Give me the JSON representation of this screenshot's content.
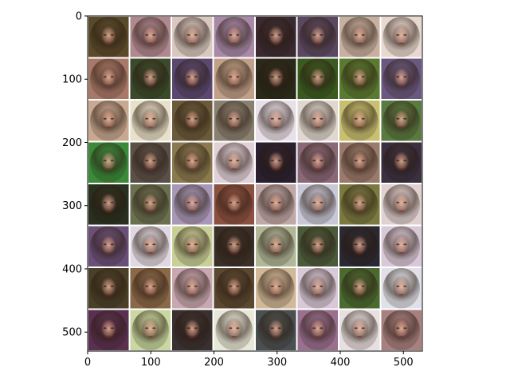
{
  "figure": {
    "xlim": [
      0,
      530
    ],
    "ylim": [
      0,
      530
    ],
    "y_inverted": true,
    "grid": {
      "rows": 8,
      "cols": 8,
      "gap_color": "#ffffff"
    }
  },
  "x_ticks": [
    {
      "value": 0,
      "label": "0"
    },
    {
      "value": 100,
      "label": "100"
    },
    {
      "value": 200,
      "label": "200"
    },
    {
      "value": 300,
      "label": "300"
    },
    {
      "value": 400,
      "label": "400"
    },
    {
      "value": 500,
      "label": "500"
    }
  ],
  "y_ticks": [
    {
      "value": 0,
      "label": "0"
    },
    {
      "value": 100,
      "label": "100"
    },
    {
      "value": 200,
      "label": "200"
    },
    {
      "value": 300,
      "label": "300"
    },
    {
      "value": 400,
      "label": "400"
    },
    {
      "value": 500,
      "label": "500"
    }
  ],
  "tiles": [
    [
      "#5a4a2a",
      "#b08890",
      "#d8c8c0",
      "#a88aa8",
      "#3a2a30",
      "#5a4860",
      "#c8b0a0",
      "#e8d8d0"
    ],
    [
      "#a87868",
      "#3a4a2a",
      "#5a4870",
      "#c0a088",
      "#2a2a1a",
      "#3a5a20",
      "#5a7a30",
      "#6a5880"
    ],
    [
      "#c8a890",
      "#e8e0c8",
      "#6a5a3a",
      "#8a8070",
      "#e8e0e8",
      "#e0d8d0",
      "#c8c070",
      "#5a7a40"
    ],
    [
      "#3a8a3a",
      "#5a5048",
      "#8a7a50",
      "#e0d0d8",
      "#2a2030",
      "#8a6878",
      "#9a7a6a",
      "#3a3040"
    ],
    [
      "#2a3020",
      "#6a7050",
      "#a898b8",
      "#8a5040",
      "#c0a8a8",
      "#c8c8d8",
      "#7a7a40",
      "#e0d0d0"
    ],
    [
      "#6a5078",
      "#e0d8e0",
      "#c8d098",
      "#3a3028",
      "#b0b898",
      "#4a5a3a",
      "#2a2830",
      "#d8c8d8"
    ],
    [
      "#4a4028",
      "#8a6848",
      "#c8a8b0",
      "#5a4830",
      "#d0b898",
      "#d8c8d8",
      "#4a6a30",
      "#e0e0e8"
    ],
    [
      "#5a3050",
      "#c8d8a0",
      "#3a3030",
      "#e8e8d8",
      "#4a5050",
      "#9a7090",
      "#e8e0e0",
      "#a88080"
    ]
  ]
}
